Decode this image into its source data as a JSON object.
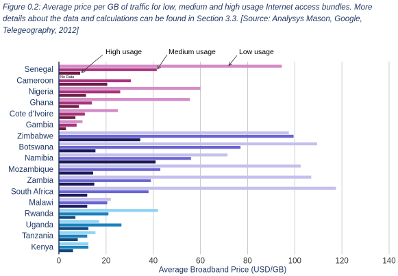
{
  "caption": "Figure 0.2: Average price per GB of traffic for low, medium and high usage Internet access bundles. More details about the data and calculations can be found in Section 3.3. [Source: Analysys Mason, Google, Telegeography, 2012]",
  "chart_data": {
    "type": "bar",
    "orientation": "horizontal",
    "xlabel": "Average Broadband Price (USD/GB)",
    "xlim": [
      0,
      140
    ],
    "xticks": [
      0,
      20,
      40,
      60,
      80,
      100,
      120,
      140
    ],
    "grid": true,
    "categories": [
      "Senegal",
      "Cameroon",
      "Nigeria",
      "Ghana",
      "Cote d'Ivoire",
      "Gambia",
      "Zimbabwe",
      "Botswana",
      "Namibia",
      "Mozambique",
      "Zambia",
      "South Africa",
      "Malawi",
      "Rwanda",
      "Uganda",
      "Tanzania",
      "Kenya"
    ],
    "series": [
      {
        "name": "Low usage",
        "values": [
          94.5,
          null,
          60,
          55.5,
          25,
          10,
          97.5,
          109.5,
          71.5,
          102.5,
          107,
          117.5,
          22,
          42,
          17,
          15.5,
          12.5
        ]
      },
      {
        "name": "Medium usage",
        "values": [
          41.5,
          30.5,
          26,
          14,
          11,
          7.5,
          99.5,
          77,
          56,
          43,
          39,
          38,
          20.5,
          21,
          26.5,
          12,
          12.5
        ]
      },
      {
        "name": "High usage",
        "values": [
          9,
          20.5,
          11.5,
          8.5,
          7,
          3,
          34.5,
          15.5,
          41,
          14.5,
          15,
          12,
          12,
          7,
          12.5,
          8,
          6
        ]
      }
    ],
    "annotations": {
      "no_data": "No Data",
      "high_label": "High usage",
      "medium_label": "Medium usage",
      "low_label": "Low usage"
    },
    "colors": {
      "groupA": [
        "#d58bc6",
        "#a8337e",
        "#6b1d44"
      ],
      "groupB": [
        "#c4c0ec",
        "#6a64d0",
        "#1c1a5a"
      ],
      "groupC": [
        "#8fd3f6",
        "#1b82bd",
        "#104a7a"
      ]
    },
    "group_of_category": [
      "A",
      "A",
      "A",
      "A",
      "A",
      "A",
      "B",
      "B",
      "B",
      "B",
      "B",
      "B",
      "B",
      "C",
      "C",
      "C",
      "C"
    ]
  }
}
